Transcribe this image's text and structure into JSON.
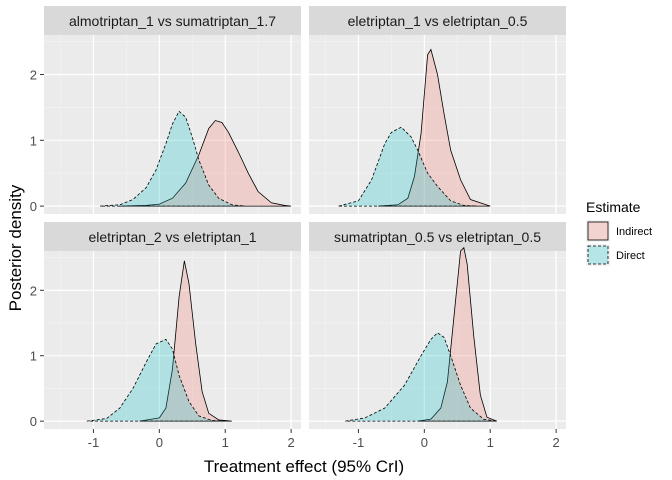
{
  "chart_data": {
    "type": "area",
    "ylabel": "Posterior density",
    "xlabel": "Treatment effect (95% CrI)",
    "xlim": [
      -1.75,
      2.15
    ],
    "ylim": [
      -0.12,
      2.6
    ],
    "xticks": [
      -1,
      0,
      1,
      2
    ],
    "yticks": [
      0,
      1,
      2
    ],
    "x_tick_labels": [
      "-1",
      "0",
      "1",
      "2"
    ],
    "y_tick_labels": [
      "0",
      "1",
      "2"
    ],
    "grid": true,
    "legend": {
      "title": "Estimate",
      "position": "right",
      "entries": [
        {
          "label": "Indirect",
          "fill": "#F8766D",
          "line": "solid"
        },
        {
          "label": "Direct",
          "fill": "#00BFC4",
          "line": "dashed"
        }
      ]
    },
    "series_names": [
      "Indirect",
      "Direct"
    ],
    "panels": [
      {
        "title": "almotriptan_1 vs sumatriptan_1.7",
        "indirect": {
          "x": [
            -0.6,
            -0.2,
            0.0,
            0.2,
            0.4,
            0.6,
            0.75,
            0.85,
            0.95,
            1.05,
            1.2,
            1.35,
            1.5,
            1.7,
            1.9,
            2.0
          ],
          "y": [
            0.0,
            0.01,
            0.03,
            0.12,
            0.35,
            0.78,
            1.18,
            1.3,
            1.27,
            1.12,
            0.82,
            0.5,
            0.22,
            0.05,
            0.01,
            0.0
          ]
        },
        "direct": {
          "x": [
            -0.9,
            -0.6,
            -0.4,
            -0.2,
            -0.05,
            0.1,
            0.2,
            0.3,
            0.4,
            0.5,
            0.6,
            0.75,
            0.9,
            1.1,
            1.3
          ],
          "y": [
            0.0,
            0.02,
            0.1,
            0.28,
            0.55,
            0.95,
            1.25,
            1.44,
            1.35,
            1.05,
            0.7,
            0.32,
            0.12,
            0.02,
            0.0
          ]
        }
      },
      {
        "title": "eletriptan_1 vs eletriptan_0.5",
        "indirect": {
          "x": [
            -0.7,
            -0.4,
            -0.25,
            -0.15,
            -0.05,
            0.0,
            0.05,
            0.1,
            0.2,
            0.3,
            0.4,
            0.55,
            0.7,
            1.0
          ],
          "y": [
            0.0,
            0.02,
            0.12,
            0.45,
            1.1,
            1.7,
            2.3,
            2.38,
            2.0,
            1.4,
            0.85,
            0.4,
            0.1,
            0.0
          ]
        },
        "direct": {
          "x": [
            -1.3,
            -1.0,
            -0.8,
            -0.6,
            -0.5,
            -0.35,
            -0.2,
            -0.1,
            0.05,
            0.2,
            0.4,
            0.6,
            0.8
          ],
          "y": [
            0.0,
            0.08,
            0.4,
            0.95,
            1.12,
            1.2,
            1.05,
            0.85,
            0.5,
            0.3,
            0.08,
            0.01,
            0.0
          ]
        }
      },
      {
        "title": "eletriptan_2 vs eletriptan_1",
        "indirect": {
          "x": [
            -0.3,
            0.0,
            0.1,
            0.2,
            0.3,
            0.38,
            0.45,
            0.55,
            0.65,
            0.75,
            0.9,
            1.1
          ],
          "y": [
            0.0,
            0.05,
            0.2,
            0.8,
            1.9,
            2.45,
            2.1,
            1.2,
            0.45,
            0.12,
            0.02,
            0.0
          ]
        },
        "direct": {
          "x": [
            -1.1,
            -0.8,
            -0.6,
            -0.4,
            -0.2,
            -0.05,
            0.1,
            0.2,
            0.3,
            0.45,
            0.6,
            0.8,
            1.0
          ],
          "y": [
            0.0,
            0.04,
            0.2,
            0.5,
            0.9,
            1.18,
            1.25,
            1.1,
            0.7,
            0.3,
            0.08,
            0.01,
            0.0
          ]
        }
      },
      {
        "title": "sumatriptan_0.5 vs eletriptan_0.5",
        "indirect": {
          "x": [
            -0.1,
            0.1,
            0.25,
            0.35,
            0.45,
            0.55,
            0.6,
            0.65,
            0.75,
            0.85,
            0.95,
            1.1
          ],
          "y": [
            0.0,
            0.03,
            0.2,
            0.6,
            1.6,
            2.6,
            2.65,
            2.4,
            1.3,
            0.4,
            0.06,
            0.0
          ]
        },
        "direct": {
          "x": [
            -1.2,
            -0.9,
            -0.6,
            -0.3,
            -0.05,
            0.1,
            0.2,
            0.3,
            0.4,
            0.55,
            0.7,
            0.9,
            1.1
          ],
          "y": [
            0.0,
            0.05,
            0.2,
            0.55,
            1.0,
            1.25,
            1.35,
            1.28,
            1.0,
            0.55,
            0.2,
            0.03,
            0.0
          ]
        }
      }
    ]
  }
}
